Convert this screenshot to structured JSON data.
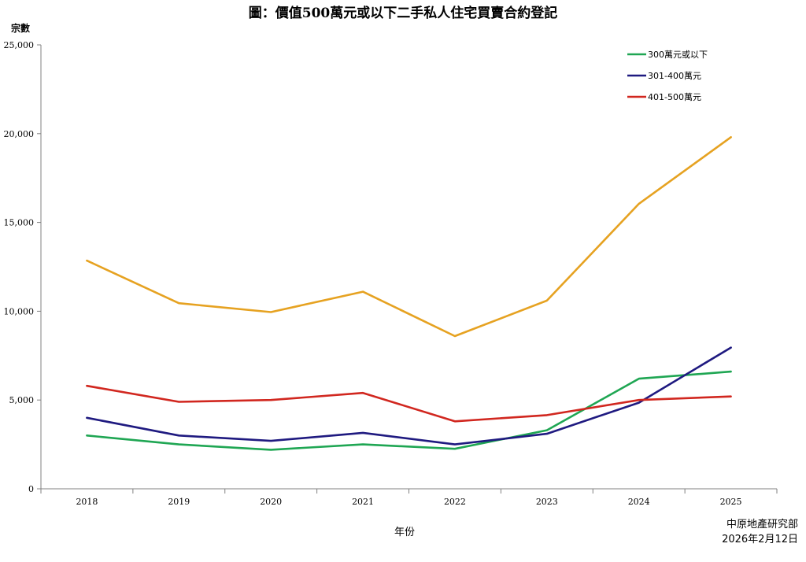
{
  "chart_data": {
    "type": "line",
    "title": "圖：價值500萬元或以下二手私人住宅買賣合約登記",
    "ylabel": "宗數",
    "xlabel": "年份",
    "x": [
      "2018",
      "2019",
      "2020",
      "2021",
      "2022",
      "2023",
      "2024",
      "2025"
    ],
    "ylim": [
      0,
      25000
    ],
    "yticks": [
      0,
      5000,
      10000,
      15000,
      20000,
      25000
    ],
    "ytick_labels": [
      "0",
      "5,000",
      "10,000",
      "15,000",
      "20,000",
      "25,000"
    ],
    "grid": false,
    "legend_position": "top-right",
    "series": [
      {
        "name": "",
        "color": "#e6a221",
        "values": [
          12850,
          10450,
          9950,
          11100,
          8600,
          10600,
          16050,
          19800
        ]
      },
      {
        "name": "300萬元或以下",
        "color": "#1fa653",
        "values": [
          3000,
          2500,
          2200,
          2500,
          2250,
          3300,
          6200,
          6600
        ]
      },
      {
        "name": "301-400萬元",
        "color": "#1f1a80",
        "values": [
          4000,
          3000,
          2700,
          3150,
          2500,
          3100,
          4850,
          7950
        ]
      },
      {
        "name": "401-500萬元",
        "color": "#d1271f",
        "values": [
          5800,
          4900,
          5000,
          5400,
          3800,
          4150,
          5000,
          5200
        ]
      }
    ]
  },
  "source": {
    "org": "中原地產研究部",
    "date": "2026年2月12日"
  }
}
